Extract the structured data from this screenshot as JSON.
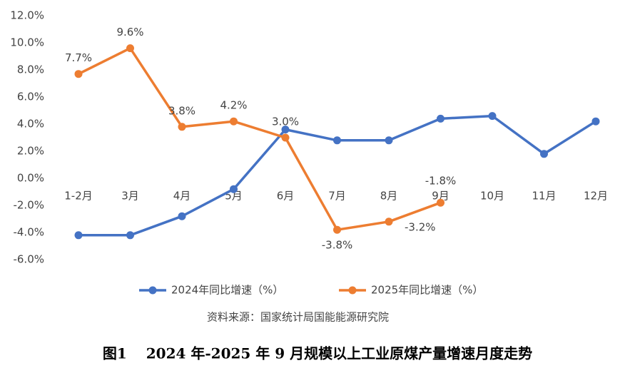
{
  "chart_data": {
    "type": "line",
    "title": "图1　 2024 年-2025 年 9 月规模以上工业原煤产量增速月度走势",
    "source": "资料来源：国家统计局国能能源研究院",
    "categories": [
      "1-2月",
      "3月",
      "4月",
      "5月",
      "6月",
      "7月",
      "8月",
      "9月",
      "10月",
      "11月",
      "12月"
    ],
    "series": [
      {
        "name": "2024年同比增速（%）",
        "color": "#4472c4",
        "values": [
          -4.2,
          -4.2,
          -2.8,
          -0.8,
          3.6,
          2.8,
          2.8,
          4.4,
          4.6,
          1.8,
          4.2
        ]
      },
      {
        "name": "2025年同比增速（%）",
        "color": "#ed7d31",
        "values": [
          7.7,
          9.6,
          3.8,
          4.2,
          3.0,
          -3.8,
          -3.2,
          -1.8,
          null,
          null,
          null
        ],
        "value_labels": [
          "7.7%",
          "9.6%",
          "3.8%",
          "4.2%",
          "3.0%",
          "-3.8%",
          "-3.2%",
          "-1.8%",
          null,
          null,
          null
        ]
      }
    ],
    "ylim": [
      -6,
      12
    ],
    "yticks": [
      {
        "value": -6,
        "label": "-6.0%"
      },
      {
        "value": -4,
        "label": "-4.0%"
      },
      {
        "value": -2,
        "label": "-2.0%"
      },
      {
        "value": 0,
        "label": "0.0%"
      },
      {
        "value": 2,
        "label": "2.0%"
      },
      {
        "value": 4,
        "label": "4.0%"
      },
      {
        "value": 6,
        "label": "6.0%"
      },
      {
        "value": 8,
        "label": "8.0%"
      },
      {
        "value": 10,
        "label": "10.0%"
      },
      {
        "value": 12,
        "label": "12.0%"
      }
    ],
    "grid": false,
    "legend": "bottom"
  }
}
